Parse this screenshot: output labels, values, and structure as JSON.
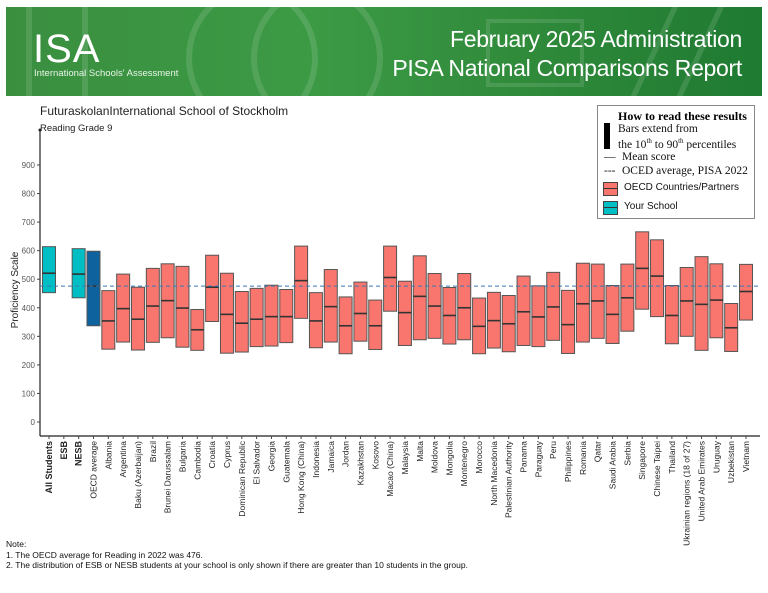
{
  "header": {
    "logo_text": "ISA",
    "logo_subtitle": "International Schools' Assessment",
    "title_line1": "February 2025 Administration",
    "title_line2": "PISA National Comparisons Report",
    "brand_color": "#3a8f3f"
  },
  "school_name": "FuturaskolanInternational School of Stockholm",
  "subject": "Reading Grade 9",
  "legend": {
    "title": "How to read these results",
    "bar_line1": "Bars extend from",
    "bar_line2_pre": "the 10",
    "bar_line2_sup1": "th",
    "bar_line2_mid": " to 90",
    "bar_line2_sup2": "th",
    "bar_line2_post": " percentiles",
    "mean_marker": "—",
    "mean": "Mean score",
    "oecd_marker": "---",
    "oecd": "OCED average, PISA 2022",
    "countries": "OECD Countries/Partners",
    "school": "Your School"
  },
  "notes": {
    "heading": "Note:",
    "items": [
      "1. The OECD average for Reading in 2022 was 476.",
      "2. The distribution of ESB or NESB students at your school is only shown if there are greater than 10 students in the group."
    ]
  },
  "chart_data": {
    "type": "bar",
    "subtype": "floating range bars (10th–90th percentile) with mean marker",
    "ylabel": "Proficiency Scale",
    "ylim": [
      0,
      900
    ],
    "yticks": [
      0,
      100,
      200,
      300,
      400,
      500,
      600,
      700,
      800,
      900
    ],
    "reference_line": {
      "label": "OCED average, PISA 2022",
      "value": 476,
      "style": "dashed",
      "color": "#3a78b5"
    },
    "grid": false,
    "legend_position": "top-right",
    "colors": {
      "school": "#00bfc4",
      "oecd_average": "#0e629e",
      "countries": "#f8766d"
    },
    "series_fields": [
      "p10",
      "mean",
      "p90"
    ],
    "categories": [
      {
        "label": "All Students",
        "group": "school",
        "bold": true,
        "p10": 453,
        "mean": 521,
        "p90": 614
      },
      {
        "label": "ESB",
        "group": "school",
        "bold": true,
        "p10": null,
        "mean": null,
        "p90": null
      },
      {
        "label": "NESB",
        "group": "school",
        "bold": true,
        "p10": 435,
        "mean": 518,
        "p90": 607
      },
      {
        "label": "OECD average",
        "group": "oecd_average",
        "p10": 337,
        "mean": 476,
        "p90": 598
      },
      {
        "label": "Albania",
        "group": "countries",
        "p10": 255,
        "mean": 354,
        "p90": 460
      },
      {
        "label": "Argentina",
        "group": "countries",
        "p10": 280,
        "mean": 397,
        "p90": 518
      },
      {
        "label": "Baku (Azerbaijan)",
        "group": "countries",
        "p10": 252,
        "mean": 360,
        "p90": 472
      },
      {
        "label": "Brazil",
        "group": "countries",
        "p10": 279,
        "mean": 406,
        "p90": 538
      },
      {
        "label": "Brunei Darussalam",
        "group": "countries",
        "p10": 295,
        "mean": 425,
        "p90": 554
      },
      {
        "label": "Bulgaria",
        "group": "countries",
        "p10": 262,
        "mean": 399,
        "p90": 545
      },
      {
        "label": "Cambodia",
        "group": "countries",
        "p10": 251,
        "mean": 323,
        "p90": 394
      },
      {
        "label": "Croatia",
        "group": "countries",
        "p10": 352,
        "mean": 472,
        "p90": 584
      },
      {
        "label": "Cyprus",
        "group": "countries",
        "p10": 241,
        "mean": 377,
        "p90": 521
      },
      {
        "label": "Dominican Republic",
        "group": "countries",
        "p10": 245,
        "mean": 346,
        "p90": 457
      },
      {
        "label": "El Salvador",
        "group": "countries",
        "p10": 264,
        "mean": 360,
        "p90": 468
      },
      {
        "label": "Georgia",
        "group": "countries",
        "p10": 266,
        "mean": 369,
        "p90": 479
      },
      {
        "label": "Guatemala",
        "group": "countries",
        "p10": 278,
        "mean": 369,
        "p90": 464
      },
      {
        "label": "Hong Kong (China)",
        "group": "countries",
        "p10": 363,
        "mean": 495,
        "p90": 616
      },
      {
        "label": "Indonesia",
        "group": "countries",
        "p10": 260,
        "mean": 354,
        "p90": 453
      },
      {
        "label": "Jamaica",
        "group": "countries",
        "p10": 280,
        "mean": 404,
        "p90": 534
      },
      {
        "label": "Jordan",
        "group": "countries",
        "p10": 239,
        "mean": 337,
        "p90": 438
      },
      {
        "label": "Kazakhstan",
        "group": "countries",
        "p10": 283,
        "mean": 380,
        "p90": 490
      },
      {
        "label": "Kosovo",
        "group": "countries",
        "p10": 254,
        "mean": 337,
        "p90": 427
      },
      {
        "label": "Macao (China)",
        "group": "countries",
        "p10": 388,
        "mean": 506,
        "p90": 616
      },
      {
        "label": "Malaysia",
        "group": "countries",
        "p10": 268,
        "mean": 383,
        "p90": 493
      },
      {
        "label": "Malta",
        "group": "countries",
        "p10": 288,
        "mean": 440,
        "p90": 582
      },
      {
        "label": "Moldova",
        "group": "countries",
        "p10": 293,
        "mean": 406,
        "p90": 520
      },
      {
        "label": "Mongolia",
        "group": "countries",
        "p10": 273,
        "mean": 373,
        "p90": 471
      },
      {
        "label": "Montenegro",
        "group": "countries",
        "p10": 288,
        "mean": 400,
        "p90": 520
      },
      {
        "label": "Morocco",
        "group": "countries",
        "p10": 239,
        "mean": 335,
        "p90": 434
      },
      {
        "label": "North Macedonia",
        "group": "countries",
        "p10": 259,
        "mean": 355,
        "p90": 454
      },
      {
        "label": "Palestinian Authority",
        "group": "countries",
        "p10": 246,
        "mean": 344,
        "p90": 443
      },
      {
        "label": "Panama",
        "group": "countries",
        "p10": 268,
        "mean": 386,
        "p90": 511
      },
      {
        "label": "Paraguay",
        "group": "countries",
        "p10": 264,
        "mean": 368,
        "p90": 477
      },
      {
        "label": "Peru",
        "group": "countries",
        "p10": 286,
        "mean": 403,
        "p90": 524
      },
      {
        "label": "Philippines",
        "group": "countries",
        "p10": 240,
        "mean": 341,
        "p90": 461
      },
      {
        "label": "Romania",
        "group": "countries",
        "p10": 280,
        "mean": 414,
        "p90": 556
      },
      {
        "label": "Qatar",
        "group": "countries",
        "p10": 293,
        "mean": 424,
        "p90": 553
      },
      {
        "label": "Saudi Arabia",
        "group": "countries",
        "p10": 275,
        "mean": 377,
        "p90": 478
      },
      {
        "label": "Serbia",
        "group": "countries",
        "p10": 318,
        "mean": 435,
        "p90": 553
      },
      {
        "label": "Singapore",
        "group": "countries",
        "p10": 395,
        "mean": 538,
        "p90": 666
      },
      {
        "label": "Chinese Taipei",
        "group": "countries",
        "p10": 369,
        "mean": 511,
        "p90": 638
      },
      {
        "label": "Thailand",
        "group": "countries",
        "p10": 274,
        "mean": 373,
        "p90": 478
      },
      {
        "label": "Ukrainian regions (18 of 27)",
        "group": "countries",
        "p10": 300,
        "mean": 424,
        "p90": 541
      },
      {
        "label": "United Arab Emirates",
        "group": "countries",
        "p10": 251,
        "mean": 412,
        "p90": 579
      },
      {
        "label": "Uruguay",
        "group": "countries",
        "p10": 295,
        "mean": 427,
        "p90": 554
      },
      {
        "label": "Uzbekistan",
        "group": "countries",
        "p10": 247,
        "mean": 330,
        "p90": 415
      },
      {
        "label": "Vietnam",
        "group": "countries",
        "p10": 357,
        "mean": 457,
        "p90": 552
      }
    ]
  }
}
